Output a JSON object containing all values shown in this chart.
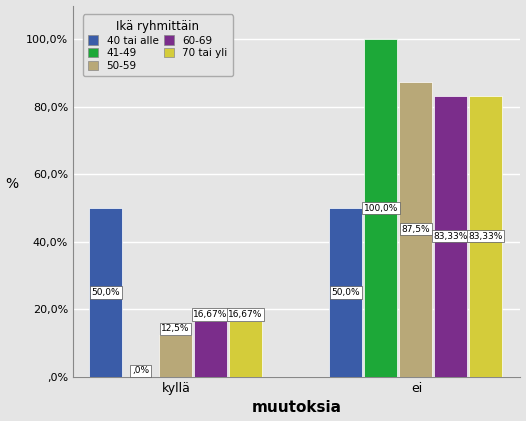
{
  "title": "Ikä ryhmittäin",
  "xlabel": "muutoksia",
  "ylabel": "%",
  "categories": [
    "kyllä",
    "ei"
  ],
  "groups": [
    "40 tai alle",
    "41-49",
    "50-59",
    "60-69",
    "70 tai yli"
  ],
  "colors": [
    "#3a5ca8",
    "#1da838",
    "#b8a878",
    "#7b2d8b",
    "#d4cc3a"
  ],
  "values": {
    "kyllä": [
      50.0,
      0.0,
      12.5,
      16.67,
      16.67
    ],
    "ei": [
      50.0,
      100.0,
      87.5,
      83.33,
      83.33
    ]
  },
  "bar_labels": {
    "kyllä": [
      "50,0%",
      ",0%",
      "12,5%",
      "16,67%",
      "16,67%"
    ],
    "ei": [
      "50,0%",
      "100,0%",
      "87,5%",
      "83,33%",
      "83,33%"
    ]
  },
  "ylim": [
    0,
    110
  ],
  "yticks": [
    0,
    20,
    40,
    60,
    80,
    100
  ],
  "ytick_labels": [
    ",0%",
    "20,0%",
    "40,0%",
    "60,0%",
    "80,0%",
    "100,0%"
  ],
  "background_color": "#e5e5e5",
  "plot_bg_color": "#e5e5e5",
  "cat_centers": [
    1.0,
    3.2
  ],
  "bar_width": 0.3,
  "bar_gap": 0.02
}
